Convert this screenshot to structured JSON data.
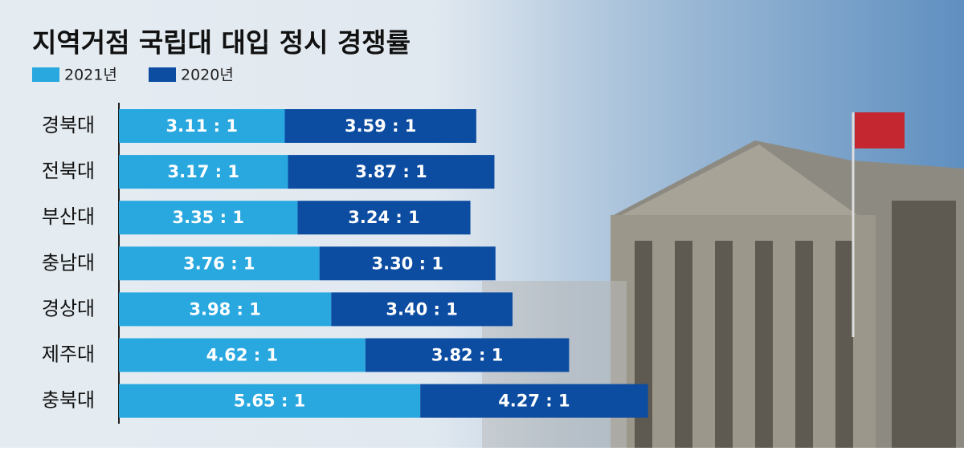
{
  "chart_data": {
    "type": "stacked-bar",
    "orientation": "horizontal",
    "title": "지역거점 국립대 대입 정시 경쟁률",
    "categories": [
      "경북대",
      "전북대",
      "부산대",
      "충남대",
      "경상대",
      "제주대",
      "충북대"
    ],
    "series": [
      {
        "name": "2021년",
        "color": "#29a8e0",
        "values": [
          3.11,
          3.17,
          3.35,
          3.76,
          3.98,
          4.62,
          5.65
        ],
        "value_labels": [
          "3.11 : 1",
          "3.17 : 1",
          "3.35 : 1",
          "3.76 : 1",
          "3.98 : 1",
          "4.62 : 1",
          "5.65 : 1"
        ]
      },
      {
        "name": "2020년",
        "color": "#0c4da2",
        "values": [
          3.59,
          3.87,
          3.24,
          3.3,
          3.4,
          3.82,
          4.27
        ],
        "value_labels": [
          "3.59 : 1",
          "3.87 : 1",
          "3.24 : 1",
          "3.30 : 1",
          "3.40 : 1",
          "3.82 : 1",
          "4.27 : 1"
        ]
      }
    ]
  }
}
